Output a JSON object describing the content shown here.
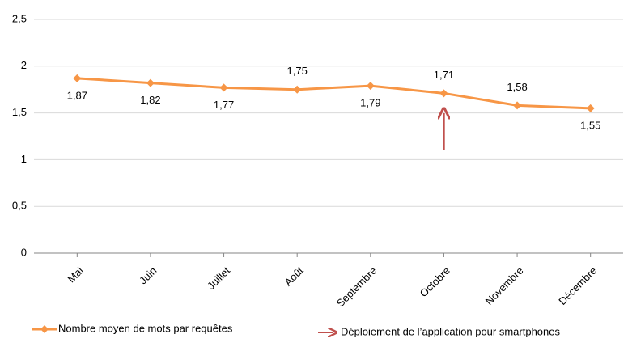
{
  "chart_data": {
    "type": "line",
    "categories": [
      "Mai",
      "Juin",
      "Juillet",
      "Août",
      "Septembre",
      "Octobre",
      "Novembre",
      "Décembre"
    ],
    "series": [
      {
        "name": "Nombre moyen de mots par requêtes",
        "color": "#f79646",
        "values": [
          1.87,
          1.82,
          1.77,
          1.75,
          1.79,
          1.71,
          1.58,
          1.55
        ],
        "value_labels": [
          "1,87",
          "1,82",
          "1,77",
          "1,75",
          "1,79",
          "1,71",
          "1,58",
          "1,55"
        ]
      }
    ],
    "ylim": [
      0,
      2.5
    ],
    "yticks": [
      0,
      {
        "value": 0.5,
        "label": "0,5"
      },
      1,
      {
        "value": 1.5,
        "label": "1,5"
      },
      2,
      {
        "value": 2.5,
        "label": "2,5"
      }
    ],
    "grid": true,
    "annotation": {
      "text": "Déploiement de l’application pour smartphones",
      "color": "#c0504d",
      "category": 5
    },
    "legend": "bottom"
  }
}
